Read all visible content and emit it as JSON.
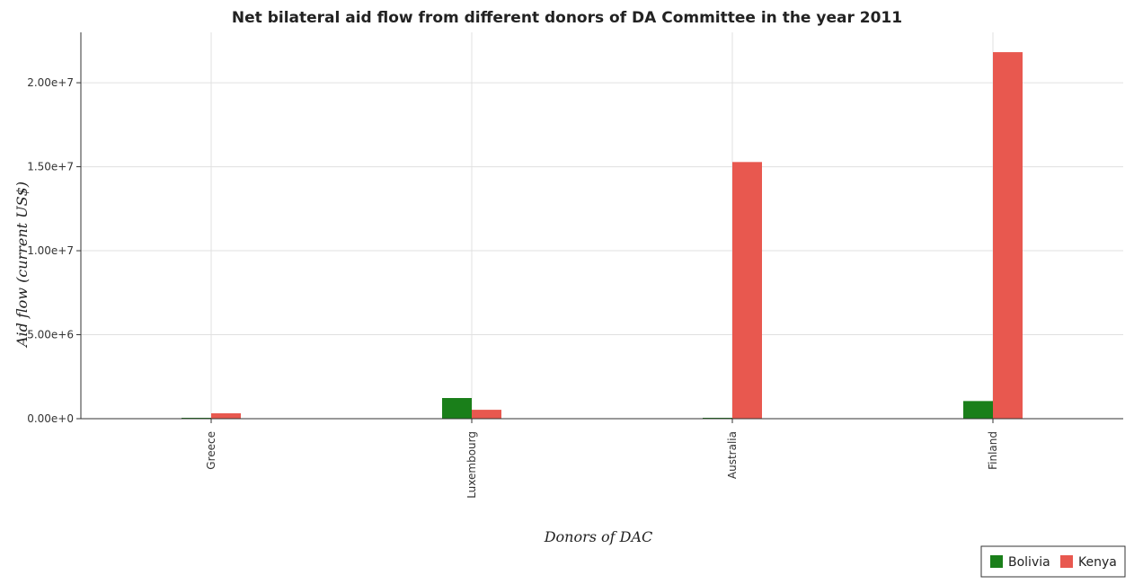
{
  "chart_data": {
    "type": "bar",
    "title": "Net bilateral aid flow from different donors of DA Committee in the year 2011",
    "xlabel": "Donors of DAC",
    "ylabel": "Aid flow (current US$)",
    "categories": [
      "Greece",
      "Luxembourg",
      "Australia",
      "Finland"
    ],
    "series": [
      {
        "name": "Bolivia",
        "color": "#1a7f1a",
        "values": [
          10000,
          1230000,
          10000,
          1050000
        ]
      },
      {
        "name": "Kenya",
        "color": "#e8584f",
        "values": [
          320000,
          530000,
          15280000,
          21820000
        ]
      }
    ],
    "ylim": [
      0,
      23000000
    ],
    "yticks": [
      0,
      5000000,
      10000000,
      15000000,
      20000000
    ],
    "ytick_labels": [
      "0.00e+0",
      "5.00e+6",
      "1.00e+7",
      "1.50e+7",
      "2.00e+7"
    ],
    "grid": true,
    "legend_position": "bottom-right"
  }
}
